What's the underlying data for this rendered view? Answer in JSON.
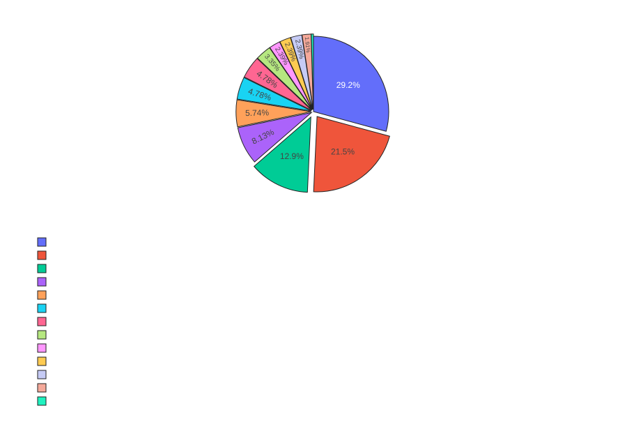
{
  "chart_data": {
    "type": "pie",
    "title": "",
    "legend_position": "bottom-left",
    "legend_labels_visible": false,
    "slices": [
      {
        "value": 29.2,
        "label": "29.2%",
        "color": "#636efa",
        "text_color": "#ffffff",
        "pull": 0
      },
      {
        "value": 21.5,
        "label": "21.5%",
        "color": "#ef553b",
        "text_color": "#444444",
        "pull": 0.08
      },
      {
        "value": 12.9,
        "label": "12.9%",
        "color": "#00cc96",
        "text_color": "#444444",
        "pull": 0.08
      },
      {
        "value": 8.13,
        "label": "8.13%",
        "color": "#ab63fa",
        "text_color": "#444444",
        "pull": 0.03
      },
      {
        "value": 5.74,
        "label": "5.74%",
        "color": "#ffa15a",
        "text_color": "#444444",
        "pull": 0.03
      },
      {
        "value": 4.78,
        "label": "4.78%",
        "color": "#19d3f3",
        "text_color": "#444444",
        "pull": 0.03
      },
      {
        "value": 4.78,
        "label": "4.78%",
        "color": "#ff6692",
        "text_color": "#444444",
        "pull": 0.03
      },
      {
        "value": 3.35,
        "label": "3.35%",
        "color": "#b6e880",
        "text_color": "#444444",
        "pull": 0.03
      },
      {
        "value": 2.39,
        "label": "2.39%",
        "color": "#ff97ff",
        "text_color": "#444444",
        "pull": 0.03
      },
      {
        "value": 2.39,
        "label": "2.39%",
        "color": "#fecb52",
        "text_color": "#444444",
        "pull": 0.03
      },
      {
        "value": 2.39,
        "label": "2.39%",
        "color": "#c6cbf5",
        "text_color": "#444444",
        "pull": 0.03
      },
      {
        "value": 1.91,
        "label": "1.91%",
        "color": "#f5a99a",
        "text_color": "#444444",
        "pull": 0.03
      },
      {
        "value": 0.48,
        "label": "",
        "color": "#1ff2c0",
        "text_color": "#444444",
        "pull": 0.03
      }
    ]
  }
}
